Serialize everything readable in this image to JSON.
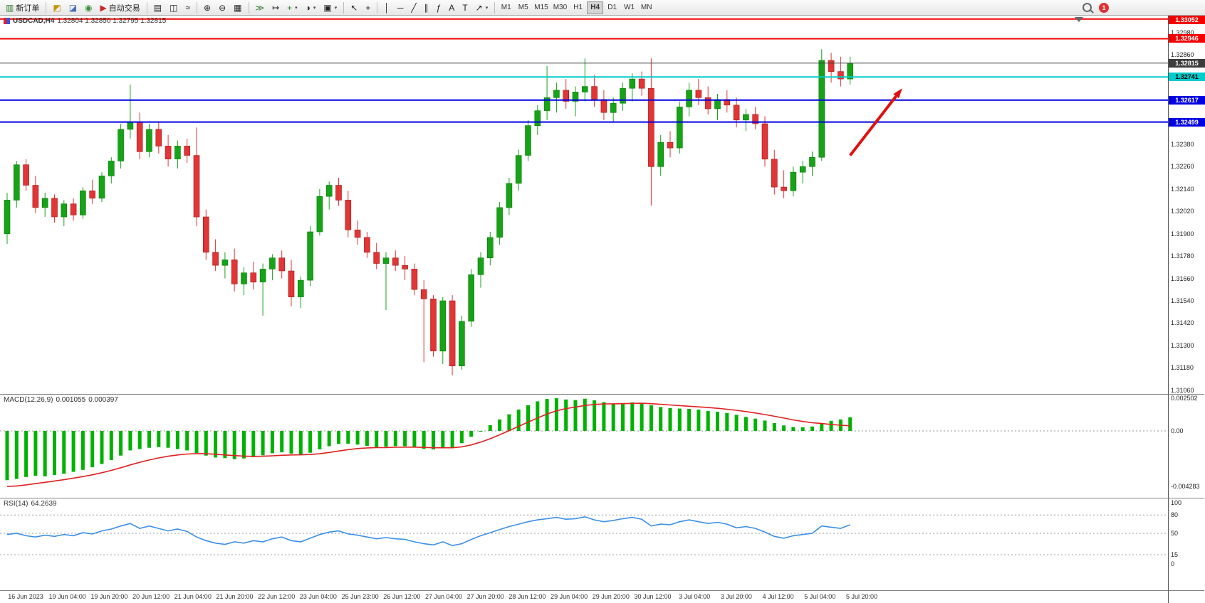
{
  "toolbar": {
    "new_order_label": "新订单",
    "autotrading_label": "自动交易",
    "badge": "1",
    "left_tools": [
      {
        "name": "new-chart-button",
        "glyph": "◩",
        "color": "#c79200"
      },
      {
        "name": "profiles-button",
        "glyph": "◪",
        "color": "#4a6fb5"
      },
      {
        "name": "navigator-button",
        "glyph": "◉",
        "color": "#3d8f3d"
      }
    ],
    "tools": [
      {
        "sep": true
      },
      {
        "name": "bars-chart-button",
        "glyph": "▤"
      },
      {
        "name": "candlestick-chart-button",
        "glyph": "◫"
      },
      {
        "name": "line-chart-button",
        "glyph": "≈"
      },
      {
        "sep": true
      },
      {
        "name": "zoom-in-button",
        "glyph": "⊕"
      },
      {
        "name": "zoom-out-button",
        "glyph": "⊖"
      },
      {
        "name": "tile-windows-button",
        "glyph": "▦"
      },
      {
        "sep": true
      },
      {
        "name": "auto-scroll-button",
        "glyph": "≫",
        "color": "#2e7d32"
      },
      {
        "name": "chart-shift-button",
        "glyph": "↦"
      },
      {
        "name": "indicators-button",
        "glyph": "+",
        "color": "#2e7d32",
        "caret": true
      },
      {
        "name": "periods-button",
        "glyph": "◑",
        "caret": true
      },
      {
        "name": "templates-button",
        "glyph": "▣",
        "caret": true
      },
      {
        "sep": true
      },
      {
        "name": "cursor-button",
        "glyph": "↖"
      },
      {
        "name": "crosshair-button",
        "glyph": "+"
      },
      {
        "sep": true
      },
      {
        "name": "vertical-line-button",
        "glyph": "│"
      },
      {
        "name": "horizontal-line-button",
        "glyph": "─"
      },
      {
        "name": "trendline-button",
        "glyph": "╱"
      },
      {
        "name": "channel-button",
        "glyph": "∥"
      },
      {
        "name": "fibonacci-button",
        "glyph": "ƒ"
      },
      {
        "name": "text-button",
        "glyph": "A"
      },
      {
        "name": "text-label-button",
        "glyph": "T"
      },
      {
        "name": "arrows-button",
        "glyph": "↗",
        "caret": true
      },
      {
        "sep": true
      }
    ],
    "timeframes": [
      "M1",
      "M5",
      "M15",
      "M30",
      "H1",
      "H4",
      "D1",
      "W1",
      "MN"
    ],
    "active_timeframe": "H4"
  },
  "chart_data": [
    {
      "type": "candlestick",
      "title_symbol": "USDCAD,H4",
      "title_ohlc": "1.32804 1.32850 1.32795 1.32815",
      "ylim": [
        1.3104,
        1.3307
      ],
      "colors": {
        "up": "#17a317",
        "down": "#e23535",
        "arrow": "#e01010"
      },
      "price_axis": [
        "1.32980",
        "1.32860",
        "1.32740",
        "1.32620",
        "1.32500",
        "1.32380",
        "1.32260",
        "1.32140",
        "1.32020",
        "1.31900",
        "1.31780",
        "1.31660",
        "1.31540",
        "1.31420",
        "1.31300",
        "1.31180",
        "1.31060"
      ],
      "hlines": [
        {
          "price": 1.33052,
          "label": "1.33052",
          "color": "#f50000",
          "text": "#ffffff",
          "width": 2
        },
        {
          "price": 1.32946,
          "label": "1.32946",
          "color": "#f50000",
          "text": "#ffffff",
          "width": 2
        },
        {
          "price": 1.32815,
          "label": "1.32815",
          "color": "#3c3c3c",
          "text": "#ffffff",
          "width": 1
        },
        {
          "price": 1.32741,
          "label": "1.32741",
          "color": "#00cccc",
          "text": "#000000",
          "width": 2
        },
        {
          "price": 1.32617,
          "label": "1.32617",
          "color": "#0000e0",
          "text": "#ffffff",
          "width": 2
        },
        {
          "price": 1.32499,
          "label": "1.32499",
          "color": "#0000e0",
          "text": "#ffffff",
          "width": 2
        }
      ],
      "arrow": {
        "from_bar": 89,
        "from_price": 1.3232,
        "to_bar": 94.5,
        "to_price": 1.3268
      },
      "time_labels": [
        "16 Jun 2023",
        "19 Jun 04:00",
        "19 Jun 20:00",
        "20 Jun 12:00",
        "21 Jun 04:00",
        "21 Jun 20:00",
        "22 Jun 12:00",
        "23 Jun 04:00",
        "25 Jun 23:00",
        "26 Jun 12:00",
        "27 Jun 04:00",
        "27 Jun 20:00",
        "28 Jun 12:00",
        "29 Jun 04:00",
        "29 Jun 20:00",
        "30 Jun 12:00",
        "3 Jul 04:00",
        "3 Jul 20:00",
        "4 Jul 12:00",
        "5 Jul 04:00",
        "5 Jul 20:00"
      ],
      "candles": [
        [
          1.319,
          1.3212,
          1.31845,
          1.3208
        ],
        [
          1.3208,
          1.3229,
          1.3204,
          1.3227
        ],
        [
          1.3227,
          1.323,
          1.3213,
          1.3216
        ],
        [
          1.3216,
          1.3221,
          1.3201,
          1.3204
        ],
        [
          1.3204,
          1.3212,
          1.3199,
          1.3209
        ],
        [
          1.3209,
          1.3211,
          1.3196,
          1.3199
        ],
        [
          1.3199,
          1.3208,
          1.3194,
          1.3206
        ],
        [
          1.3206,
          1.3209,
          1.3197,
          1.32
        ],
        [
          1.32,
          1.3215,
          1.3198,
          1.3213
        ],
        [
          1.3213,
          1.3219,
          1.3206,
          1.3209
        ],
        [
          1.3209,
          1.3223,
          1.3207,
          1.3221
        ],
        [
          1.3221,
          1.3231,
          1.3217,
          1.3229
        ],
        [
          1.3229,
          1.3249,
          1.3225,
          1.3246
        ],
        [
          1.3246,
          1.327,
          1.3241,
          1.325
        ],
        [
          1.325,
          1.3255,
          1.323,
          1.3234
        ],
        [
          1.3234,
          1.3249,
          1.3231,
          1.3246
        ],
        [
          1.3246,
          1.325,
          1.3233,
          1.3237
        ],
        [
          1.3237,
          1.3243,
          1.3226,
          1.323
        ],
        [
          1.323,
          1.324,
          1.3225,
          1.3237
        ],
        [
          1.3237,
          1.3241,
          1.3228,
          1.3232
        ],
        [
          1.3232,
          1.3247,
          1.3194,
          1.3199
        ],
        [
          1.3199,
          1.3203,
          1.3176,
          1.318
        ],
        [
          1.318,
          1.3187,
          1.317,
          1.3173
        ],
        [
          1.3173,
          1.318,
          1.3166,
          1.3176
        ],
        [
          1.3176,
          1.3182,
          1.3159,
          1.3163
        ],
        [
          1.3163,
          1.3172,
          1.3157,
          1.3169
        ],
        [
          1.3169,
          1.3175,
          1.316,
          1.3164
        ],
        [
          1.3164,
          1.3174,
          1.3146,
          1.3171
        ],
        [
          1.3171,
          1.3179,
          1.3165,
          1.3177
        ],
        [
          1.3177,
          1.3181,
          1.3166,
          1.317
        ],
        [
          1.317,
          1.3176,
          1.3151,
          1.3156
        ],
        [
          1.3156,
          1.3167,
          1.315,
          1.3165
        ],
        [
          1.3165,
          1.3194,
          1.3162,
          1.3191
        ],
        [
          1.3191,
          1.3214,
          1.3189,
          1.321
        ],
        [
          1.321,
          1.3218,
          1.3203,
          1.3216
        ],
        [
          1.3216,
          1.322,
          1.3205,
          1.3208
        ],
        [
          1.3208,
          1.3213,
          1.3188,
          1.3192
        ],
        [
          1.3192,
          1.3197,
          1.3184,
          1.3188
        ],
        [
          1.3188,
          1.3191,
          1.3177,
          1.318
        ],
        [
          1.318,
          1.3185,
          1.3171,
          1.3174
        ],
        [
          1.3174,
          1.318,
          1.3149,
          1.3177
        ],
        [
          1.3177,
          1.3181,
          1.317,
          1.3173
        ],
        [
          1.3173,
          1.3178,
          1.3165,
          1.3171
        ],
        [
          1.3171,
          1.3174,
          1.3157,
          1.316
        ],
        [
          1.316,
          1.3165,
          1.3121,
          1.3155
        ],
        [
          1.3155,
          1.3157,
          1.3124,
          1.3127
        ],
        [
          1.3127,
          1.3156,
          1.312,
          1.3154
        ],
        [
          1.3154,
          1.3157,
          1.3114,
          1.3119
        ],
        [
          1.3119,
          1.3146,
          1.3117,
          1.3143
        ],
        [
          1.3143,
          1.3171,
          1.314,
          1.3168
        ],
        [
          1.3168,
          1.318,
          1.3161,
          1.3177
        ],
        [
          1.3177,
          1.3191,
          1.3173,
          1.3188
        ],
        [
          1.3188,
          1.3207,
          1.3184,
          1.3204
        ],
        [
          1.3204,
          1.322,
          1.32,
          1.3217
        ],
        [
          1.3217,
          1.3235,
          1.3213,
          1.3232
        ],
        [
          1.3232,
          1.3251,
          1.3229,
          1.3248
        ],
        [
          1.3248,
          1.3259,
          1.3243,
          1.3256
        ],
        [
          1.3256,
          1.328,
          1.3251,
          1.3263
        ],
        [
          1.3263,
          1.3271,
          1.3255,
          1.3267
        ],
        [
          1.3267,
          1.3273,
          1.3257,
          1.3261
        ],
        [
          1.3261,
          1.3269,
          1.3253,
          1.3266
        ],
        [
          1.3266,
          1.3284,
          1.3261,
          1.3269
        ],
        [
          1.3269,
          1.3275,
          1.3258,
          1.3262
        ],
        [
          1.3262,
          1.3267,
          1.3251,
          1.3255
        ],
        [
          1.3255,
          1.3263,
          1.325,
          1.326
        ],
        [
          1.326,
          1.3271,
          1.3256,
          1.3268
        ],
        [
          1.3268,
          1.3276,
          1.3261,
          1.3273
        ],
        [
          1.3273,
          1.3277,
          1.3264,
          1.3268
        ],
        [
          1.3268,
          1.3284,
          1.3205,
          1.3226
        ],
        [
          1.3226,
          1.3243,
          1.3221,
          1.3239
        ],
        [
          1.3239,
          1.3245,
          1.3231,
          1.3236
        ],
        [
          1.3236,
          1.3261,
          1.3233,
          1.3258
        ],
        [
          1.3258,
          1.3271,
          1.3253,
          1.3267
        ],
        [
          1.3267,
          1.3273,
          1.3259,
          1.3263
        ],
        [
          1.3263,
          1.3269,
          1.3254,
          1.3257
        ],
        [
          1.3257,
          1.3265,
          1.3251,
          1.3262
        ],
        [
          1.3262,
          1.3267,
          1.3255,
          1.3259
        ],
        [
          1.3259,
          1.3263,
          1.3247,
          1.3251
        ],
        [
          1.3251,
          1.3257,
          1.3245,
          1.3254
        ],
        [
          1.3254,
          1.3258,
          1.3246,
          1.3249
        ],
        [
          1.3249,
          1.3253,
          1.3226,
          1.323
        ],
        [
          1.323,
          1.3235,
          1.3211,
          1.3215
        ],
        [
          1.3215,
          1.3224,
          1.3209,
          1.3213
        ],
        [
          1.3213,
          1.3226,
          1.321,
          1.3223
        ],
        [
          1.3223,
          1.3229,
          1.3217,
          1.3226
        ],
        [
          1.3226,
          1.3234,
          1.3221,
          1.3231
        ],
        [
          1.3231,
          1.3289,
          1.3229,
          1.3283
        ],
        [
          1.3283,
          1.3287,
          1.3271,
          1.3277
        ],
        [
          1.3277,
          1.3285,
          1.3269,
          1.3273
        ],
        [
          1.3273,
          1.3285,
          1.327,
          1.32815
        ]
      ]
    },
    {
      "type": "bar",
      "label": "MACD(12,26,9)",
      "value_main": "0.001055",
      "value_signal": "0.000397",
      "axis": [
        "0.002502",
        "0.00",
        "-0.004283"
      ],
      "colors": {
        "histogram": "#00b200",
        "signal": "#e02020"
      },
      "histogram": [
        -380,
        -370,
        -355,
        -345,
        -350,
        -340,
        -330,
        -315,
        -300,
        -280,
        -255,
        -225,
        -190,
        -150,
        -140,
        -130,
        -125,
        -130,
        -140,
        -150,
        -170,
        -190,
        -205,
        -210,
        -218,
        -212,
        -202,
        -188,
        -172,
        -165,
        -175,
        -182,
        -168,
        -142,
        -118,
        -100,
        -98,
        -105,
        -115,
        -128,
        -122,
        -118,
        -118,
        -128,
        -138,
        -142,
        -128,
        -132,
        -95,
        -45,
        0,
        45,
        88,
        128,
        165,
        198,
        228,
        246,
        252,
        242,
        238,
        248,
        236,
        222,
        210,
        215,
        220,
        214,
        198,
        184,
        176,
        172,
        170,
        164,
        154,
        148,
        138,
        124,
        108,
        95,
        80,
        60,
        42,
        30,
        28,
        34,
        60,
        78,
        88,
        105
      ],
      "signal": [
        -428,
        -424,
        -416,
        -406,
        -396,
        -386,
        -376,
        -364,
        -352,
        -338,
        -322,
        -304,
        -284,
        -262,
        -242,
        -224,
        -208,
        -195,
        -185,
        -178,
        -175,
        -176,
        -180,
        -185,
        -190,
        -194,
        -196,
        -195,
        -192,
        -188,
        -185,
        -184,
        -182,
        -176,
        -166,
        -155,
        -144,
        -136,
        -131,
        -129,
        -128,
        -126,
        -125,
        -125,
        -127,
        -130,
        -130,
        -130,
        -123,
        -108,
        -86,
        -60,
        -30,
        2,
        35,
        68,
        100,
        130,
        155,
        172,
        184,
        196,
        204,
        208,
        209,
        210,
        212,
        213,
        210,
        205,
        200,
        195,
        190,
        185,
        180,
        174,
        167,
        159,
        149,
        138,
        126,
        113,
        99,
        85,
        73,
        63,
        57,
        50,
        44,
        40
      ]
    },
    {
      "type": "line",
      "label": "RSI(14)",
      "value": "64.2639",
      "axis": [
        "100",
        "80",
        "50",
        "15",
        "0"
      ],
      "levels": [
        80,
        50,
        15
      ],
      "colors": {
        "line": "#3b8fe8"
      },
      "values": [
        48,
        50,
        46,
        44,
        47,
        45,
        48,
        46,
        51,
        49,
        54,
        57,
        62,
        66,
        58,
        62,
        58,
        54,
        57,
        53,
        44,
        38,
        34,
        32,
        36,
        34,
        38,
        36,
        41,
        44,
        38,
        36,
        42,
        48,
        52,
        54,
        49,
        47,
        44,
        41,
        43,
        41,
        40,
        36,
        33,
        31,
        36,
        30,
        33,
        40,
        46,
        51,
        56,
        61,
        65,
        69,
        72,
        74,
        76,
        73,
        74,
        77,
        72,
        69,
        71,
        74,
        76,
        73,
        62,
        65,
        64,
        69,
        72,
        69,
        66,
        68,
        65,
        59,
        61,
        58,
        52,
        45,
        42,
        46,
        48,
        50,
        62,
        60,
        58,
        64
      ]
    }
  ]
}
